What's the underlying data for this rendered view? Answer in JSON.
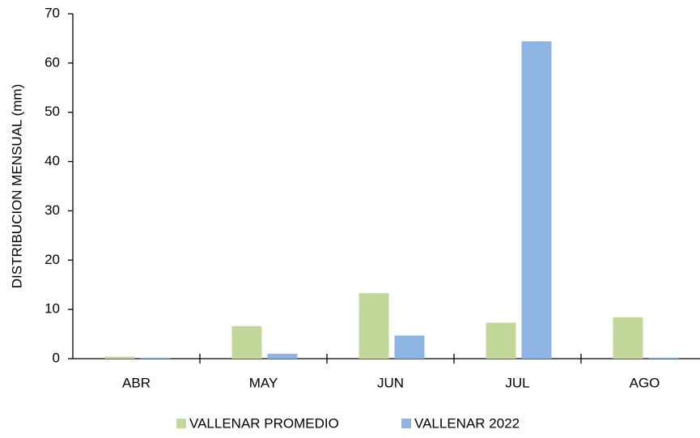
{
  "chart_data": {
    "type": "bar",
    "ylabel": "DISTRIBUCION MENSUAL (mm)",
    "categories": [
      "ABR",
      "MAY",
      "JUN",
      "JUL",
      "AGO"
    ],
    "series": [
      {
        "name": "VALLENAR PROMEDIO",
        "color": "#c4d79b",
        "values": [
          0.4,
          6.6,
          13.3,
          7.3,
          8.4
        ]
      },
      {
        "name": "VALLENAR 2022",
        "color": "#8db4e2",
        "values": [
          0.2,
          1.0,
          4.7,
          64.4,
          0.2
        ]
      }
    ],
    "ylim": [
      0,
      70
    ],
    "yticks": [
      0,
      10,
      20,
      30,
      40,
      50,
      60,
      70
    ],
    "legend": "bottom"
  }
}
